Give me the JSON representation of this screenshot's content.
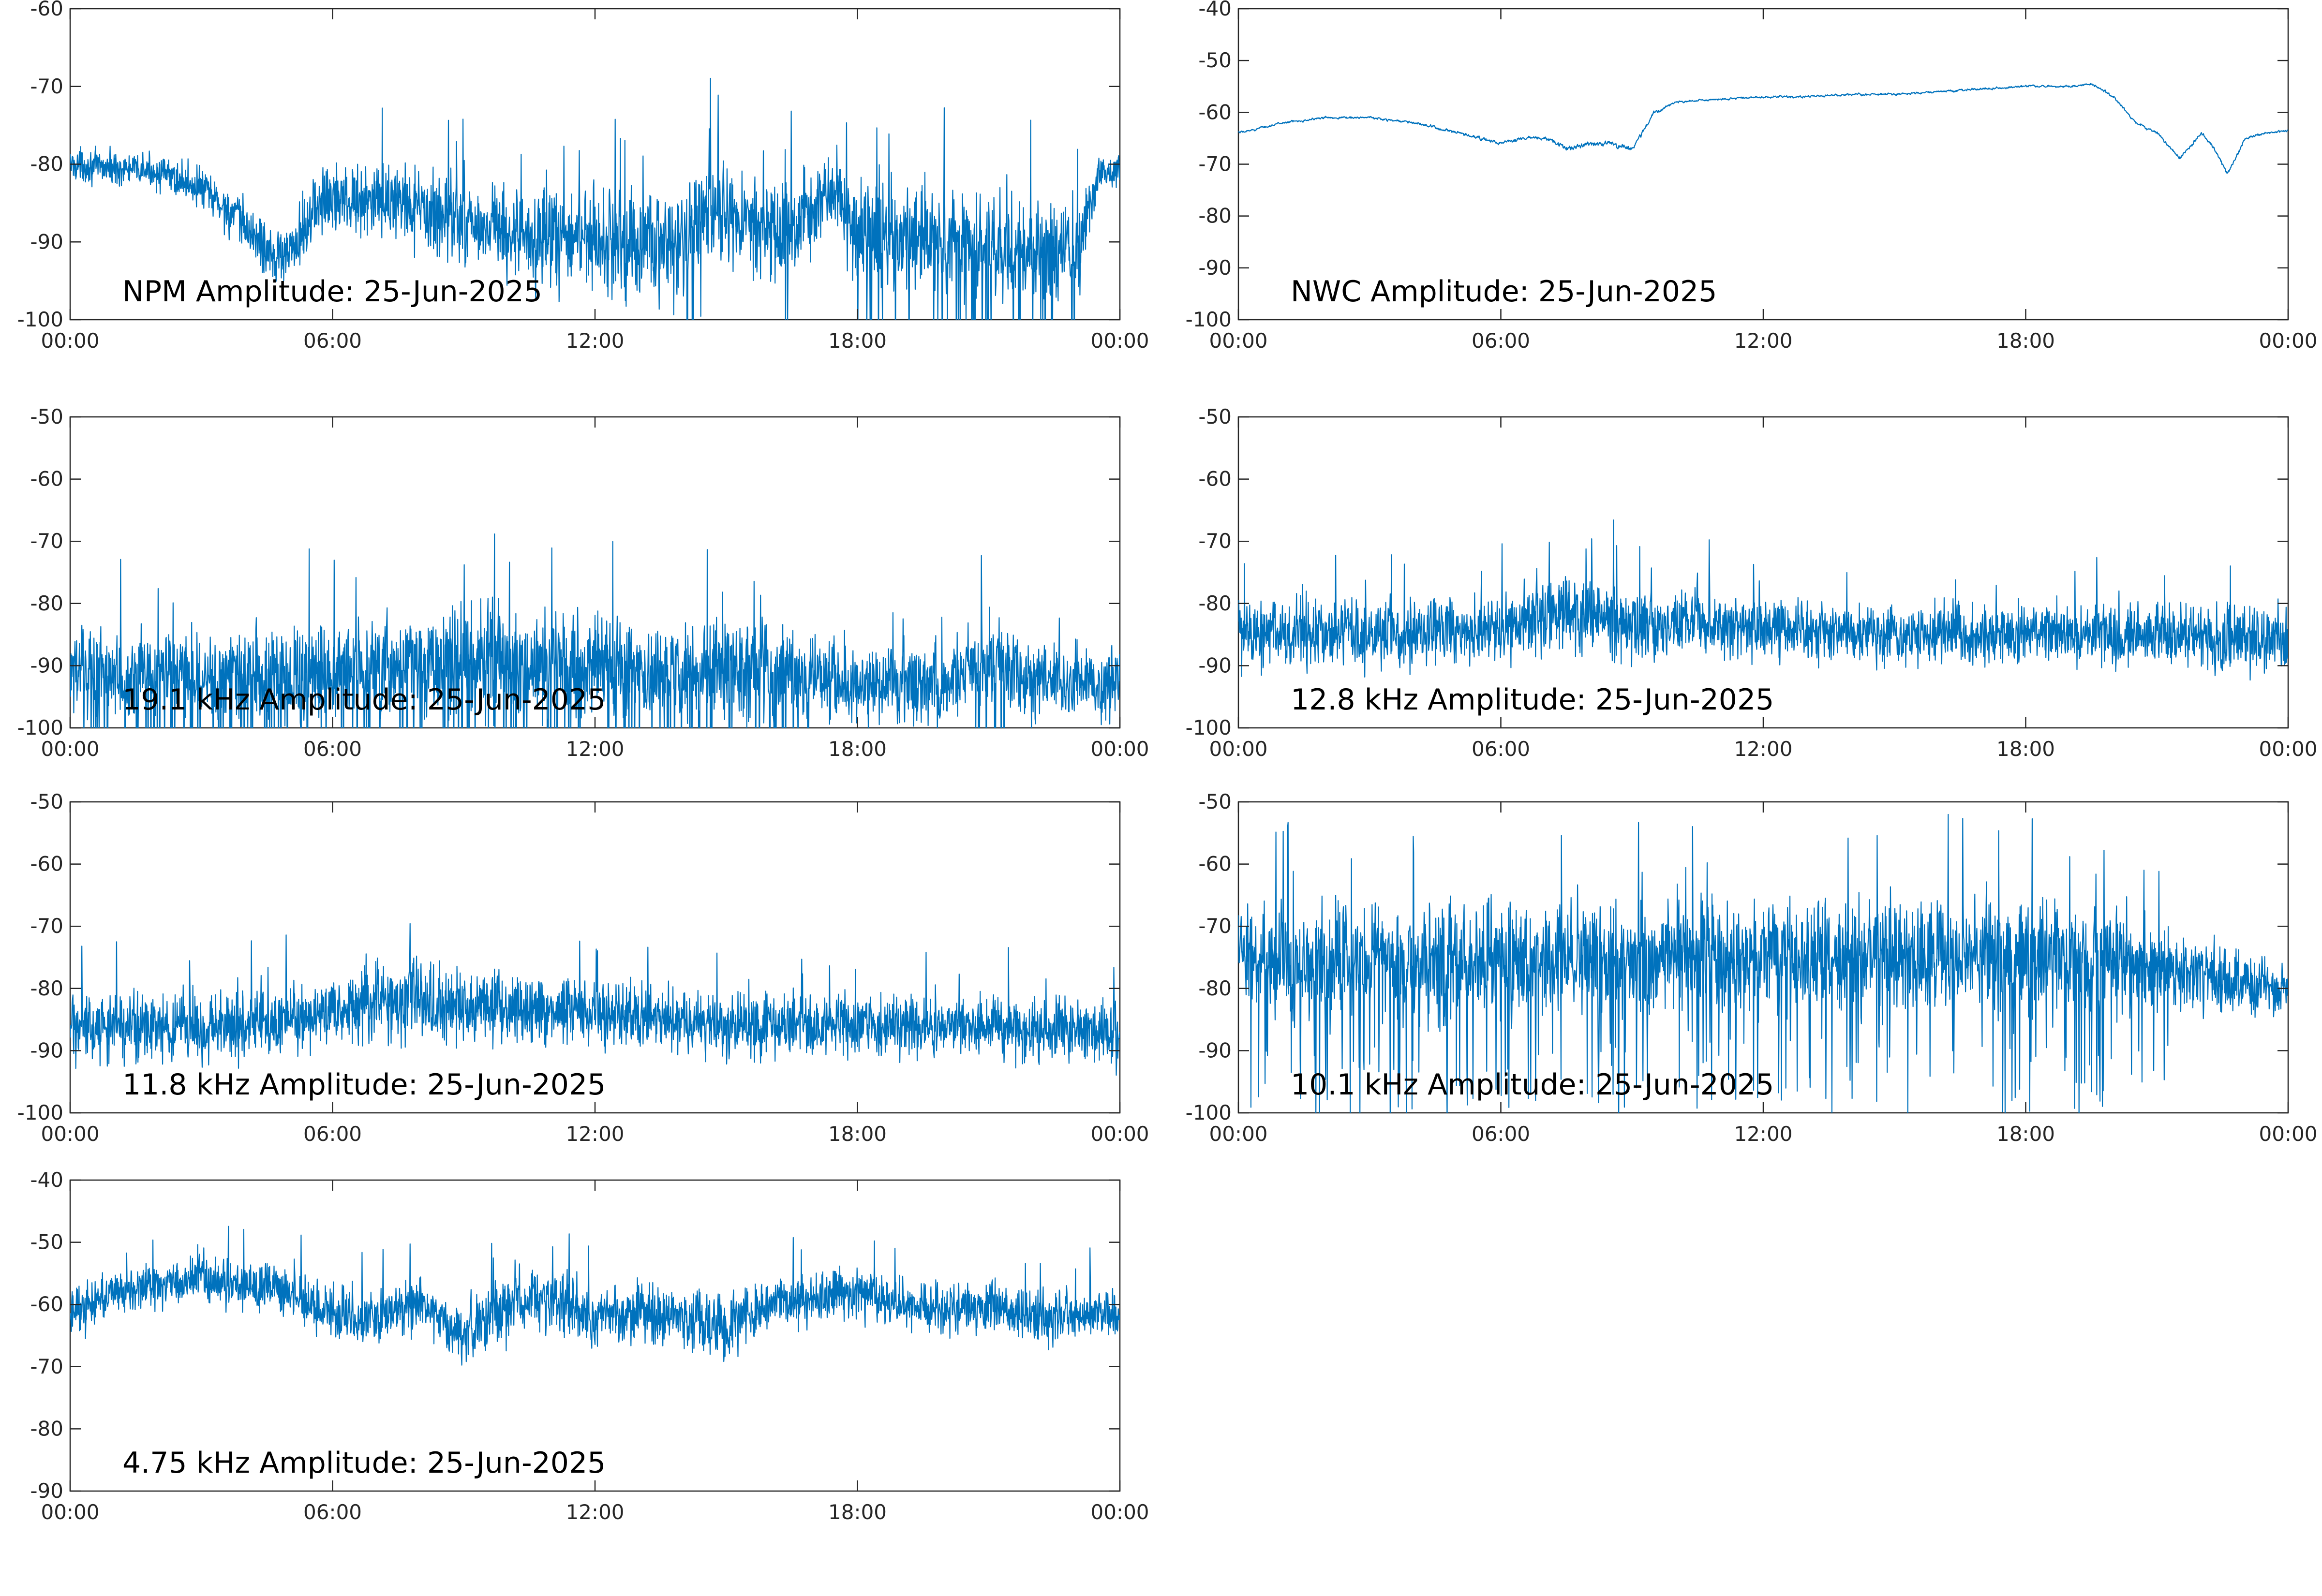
{
  "figure": {
    "line_color": "#0072BD"
  },
  "chart_data": [
    {
      "type": "line",
      "title": "NPM Amplitude: 25-Jun-2025",
      "xlabel": "",
      "ylabel": "",
      "ylim": [
        -100,
        -60
      ],
      "yticks": [
        -100,
        -90,
        -80,
        -70,
        -60
      ],
      "xlim": [
        0,
        24
      ],
      "xticks": [
        0,
        6,
        12,
        18,
        24
      ],
      "xtick_labels": [
        "00:00",
        "06:00",
        "12:00",
        "18:00",
        "00:00"
      ],
      "grid": false,
      "series": [
        {
          "x": [
            0,
            1,
            2,
            3,
            4,
            4.5,
            5,
            5.5,
            6,
            7,
            8,
            9,
            10,
            11,
            12,
            13,
            14,
            14.5,
            15,
            16,
            16.5,
            17,
            17.5,
            18,
            19,
            20,
            21,
            22,
            23,
            23.5,
            24
          ],
          "values": [
            -80,
            -80.5,
            -81,
            -83,
            -88,
            -91,
            -92,
            -86,
            -84,
            -85,
            -86,
            -87,
            -89,
            -90,
            -89,
            -91,
            -90,
            -86,
            -87,
            -89,
            -88,
            -86,
            -83,
            -89,
            -90,
            -90,
            -90,
            -91,
            -92,
            -81,
            -81
          ],
          "noise": [
            3,
            3,
            3,
            4,
            5,
            5,
            5,
            7,
            7,
            7,
            7,
            8,
            9,
            9,
            9,
            9,
            10,
            10,
            9,
            10,
            10,
            8,
            6,
            10,
            10,
            10,
            10,
            10,
            10,
            3,
            3
          ]
        }
      ]
    },
    {
      "type": "line",
      "title": "NWC Amplitude: 25-Jun-2025",
      "xlabel": "",
      "ylabel": "",
      "ylim": [
        -100,
        -40
      ],
      "yticks": [
        -100,
        -90,
        -80,
        -70,
        -60,
        -50,
        -40
      ],
      "xlim": [
        0,
        24
      ],
      "xticks": [
        0,
        6,
        12,
        18,
        24
      ],
      "xtick_labels": [
        "00:00",
        "06:00",
        "12:00",
        "18:00",
        "00:00"
      ],
      "grid": false,
      "series": [
        {
          "x": [
            0,
            1,
            2,
            3,
            4,
            5,
            6,
            6.5,
            7,
            7.5,
            8,
            8.5,
            9,
            9.5,
            10,
            11,
            12,
            13,
            14,
            15,
            16,
            17,
            18,
            19,
            19.5,
            20,
            20.5,
            21,
            21.5,
            22,
            22.3,
            22.6,
            23,
            23.5,
            24
          ],
          "values": [
            -64,
            -62,
            -61,
            -61,
            -62,
            -64,
            -66,
            -65,
            -65,
            -67,
            -66,
            -66,
            -67,
            -60,
            -58,
            -57.5,
            -57,
            -57,
            -56.5,
            -56.5,
            -56,
            -55.5,
            -55,
            -55,
            -54.5,
            -57,
            -62,
            -64,
            -69,
            -64,
            -67,
            -72,
            -65,
            -64,
            -63.5
          ],
          "noise": [
            0.6,
            0.6,
            0.6,
            0.6,
            0.8,
            0.8,
            1,
            1,
            1.2,
            1.5,
            1.5,
            1.5,
            1.5,
            1,
            0.6,
            0.6,
            0.6,
            0.6,
            0.6,
            0.6,
            0.6,
            0.6,
            0.6,
            0.6,
            0.6,
            0.8,
            0.8,
            0.8,
            1,
            1,
            1,
            1,
            0.8,
            0.6,
            0.6
          ]
        }
      ]
    },
    {
      "type": "line",
      "title": "19.1 kHz Amplitude: 25-Jun-2025",
      "xlabel": "",
      "ylabel": "",
      "ylim": [
        -100,
        -50
      ],
      "yticks": [
        -100,
        -90,
        -80,
        -70,
        -60,
        -50
      ],
      "xlim": [
        0,
        24
      ],
      "xticks": [
        0,
        6,
        12,
        18,
        24
      ],
      "xtick_labels": [
        "00:00",
        "06:00",
        "12:00",
        "18:00",
        "00:00"
      ],
      "grid": false,
      "series": [
        {
          "x": [
            0,
            4,
            8,
            10,
            12,
            14,
            16,
            18,
            20,
            21,
            22,
            24
          ],
          "values": [
            -91,
            -92,
            -90,
            -89,
            -90,
            -90,
            -91,
            -93,
            -93,
            -89,
            -92,
            -93
          ],
          "noise": [
            10,
            11,
            12,
            13,
            12,
            12,
            11,
            9,
            9,
            11,
            9,
            9
          ]
        }
      ]
    },
    {
      "type": "line",
      "title": "12.8 kHz Amplitude: 25-Jun-2025",
      "xlabel": "",
      "ylabel": "",
      "ylim": [
        -100,
        -50
      ],
      "yticks": [
        -100,
        -90,
        -80,
        -70,
        -60,
        -50
      ],
      "xlim": [
        0,
        24
      ],
      "xticks": [
        0,
        6,
        12,
        18,
        24
      ],
      "xtick_labels": [
        "00:00",
        "06:00",
        "12:00",
        "18:00",
        "00:00"
      ],
      "grid": false,
      "series": [
        {
          "x": [
            0,
            3,
            6,
            7,
            8,
            9,
            10,
            12,
            15,
            18,
            21,
            24
          ],
          "values": [
            -85,
            -85,
            -84,
            -82,
            -82,
            -83,
            -83,
            -84,
            -85,
            -85,
            -85,
            -86
          ],
          "noise": [
            8,
            8,
            8,
            9,
            9,
            9,
            8,
            7,
            7,
            7,
            7,
            8
          ]
        }
      ]
    },
    {
      "type": "line",
      "title": "11.8 kHz Amplitude: 25-Jun-2025",
      "xlabel": "",
      "ylabel": "",
      "ylim": [
        -100,
        -50
      ],
      "yticks": [
        -100,
        -90,
        -80,
        -70,
        -60,
        -50
      ],
      "xlim": [
        0,
        24
      ],
      "xticks": [
        0,
        6,
        12,
        18,
        24
      ],
      "xtick_labels": [
        "00:00",
        "06:00",
        "12:00",
        "18:00",
        "00:00"
      ],
      "grid": false,
      "series": [
        {
          "x": [
            0,
            3,
            6,
            7,
            8,
            9,
            10,
            12,
            15,
            18,
            21,
            24
          ],
          "values": [
            -86,
            -86,
            -84,
            -82,
            -82,
            -83,
            -83,
            -84,
            -86,
            -86,
            -86,
            -87
          ],
          "noise": [
            8,
            8,
            8,
            9,
            9,
            9,
            8,
            7,
            7,
            7,
            7,
            8
          ]
        }
      ]
    },
    {
      "type": "line",
      "title": "10.1 kHz Amplitude: 25-Jun-2025",
      "xlabel": "",
      "ylabel": "",
      "ylim": [
        -100,
        -50
      ],
      "yticks": [
        -100,
        -90,
        -80,
        -70,
        -60,
        -50
      ],
      "xlim": [
        0,
        24
      ],
      "xticks": [
        0,
        6,
        12,
        18,
        24
      ],
      "xtick_labels": [
        "00:00",
        "06:00",
        "12:00",
        "18:00",
        "00:00"
      ],
      "grid": false,
      "series": [
        {
          "x": [
            0,
            4,
            8,
            12,
            16,
            20,
            22.5,
            24
          ],
          "values": [
            -76,
            -76,
            -75,
            -75,
            -75,
            -75,
            -79,
            -80
          ],
          "noise": [
            13,
            13,
            13,
            13,
            13,
            13,
            8,
            5
          ]
        }
      ]
    },
    {
      "type": "line",
      "title": "4.75 kHz Amplitude: 25-Jun-2025",
      "xlabel": "",
      "ylabel": "",
      "ylim": [
        -90,
        -40
      ],
      "yticks": [
        -90,
        -80,
        -70,
        -60,
        -50,
        -40
      ],
      "xlim": [
        0,
        24
      ],
      "xticks": [
        0,
        6,
        12,
        18,
        24
      ],
      "xtick_labels": [
        "00:00",
        "06:00",
        "12:00",
        "18:00",
        "00:00"
      ],
      "grid": false,
      "series": [
        {
          "x": [
            0,
            1,
            2,
            3,
            4,
            5,
            6,
            7,
            8,
            9,
            10,
            11,
            12,
            13,
            14,
            15,
            16,
            17,
            18,
            19,
            20,
            21,
            22,
            23,
            24
          ],
          "values": [
            -62,
            -58,
            -57,
            -56,
            -57,
            -58,
            -62,
            -62,
            -60,
            -65,
            -60,
            -59,
            -62,
            -61,
            -62,
            -63,
            -60,
            -59,
            -58,
            -60,
            -61,
            -60,
            -62,
            -62,
            -61
          ],
          "noise": [
            6,
            5,
            5,
            5,
            6,
            6,
            7,
            6,
            6,
            7,
            8,
            7,
            7,
            7,
            7,
            8,
            6,
            6,
            6,
            6,
            6,
            6,
            6,
            6,
            6
          ]
        }
      ]
    }
  ]
}
